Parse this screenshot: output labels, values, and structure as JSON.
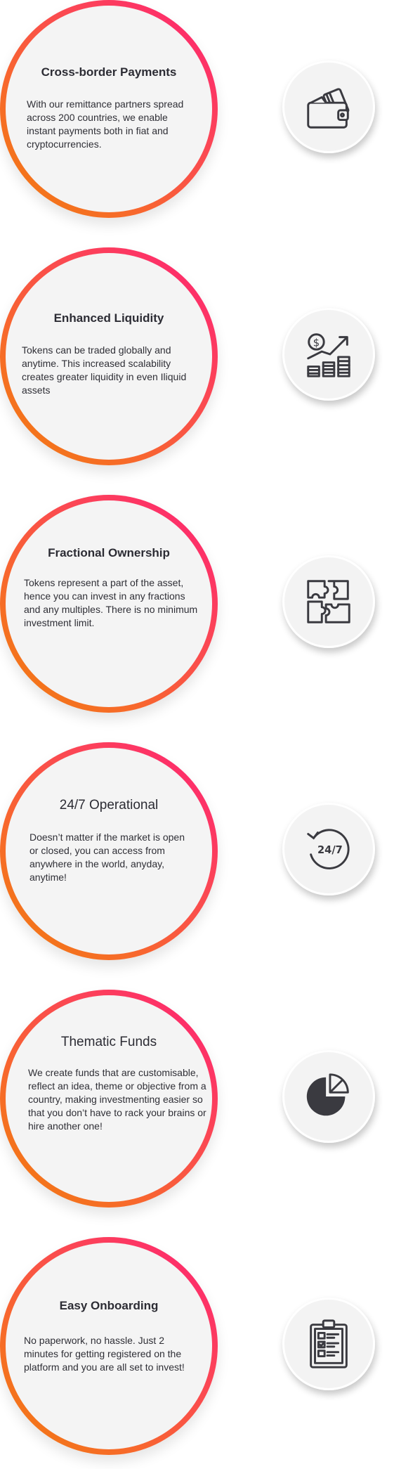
{
  "features": [
    {
      "title": "Cross-border Payments",
      "description": "With our remittance partners spread across 200 countries, we enable instant payments both in fiat and cryptocurrencies.",
      "icon": "wallet-icon"
    },
    {
      "title": "Enhanced Liquidity",
      "description": "Tokens can be traded globally and anytime. This increased scalability creates greater liquidity in even Iliquid assets",
      "icon": "growth-chart-icon"
    },
    {
      "title": "Fractional Ownership",
      "description": "Tokens represent a part of the asset, hence you can invest in any fractions and any multiples. There is no minimum investment limit.",
      "icon": "puzzle-icon"
    },
    {
      "title": "24/7 Operational",
      "description": "Doesn’t matter if the market is open or closed, you can access from anywhere in the world, anyday, anytime!",
      "icon": "clock-24-7-icon",
      "icon_text": "24/7"
    },
    {
      "title": "Thematic Funds",
      "description": "We create funds that are customisable, reflect an idea, theme or objective from a country, making investmenting easier so that you don’t have to rack your brains or hire another one!",
      "icon": "pie-chart-icon"
    },
    {
      "title": "Easy Onboarding",
      "description": "No paperwork, no hassle. Just 2 minutes for getting registered on the platform and you are all set to invest!",
      "icon": "clipboard-checklist-icon"
    }
  ],
  "colors": {
    "ring_start": "#ff1f77",
    "ring_end": "#f07d0d",
    "disc": "#f4f4f4",
    "icon_stroke": "#3a3a40"
  }
}
